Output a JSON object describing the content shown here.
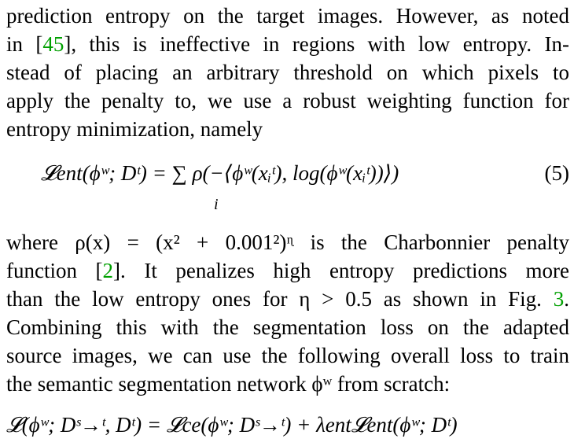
{
  "paragraph1": {
    "line1": "prediction entropy on the target images. However, as noted",
    "line2_pre": "in [",
    "line2_cite": "45",
    "line2_post": "], this is ineffective in regions with low entropy. In-",
    "line3": "stead of placing an arbitrary threshold on which pixels to",
    "line4": "apply the penalty to, we use a robust weighting function for",
    "line5": "entropy minimization, namely"
  },
  "equation5": {
    "body": "𝓛ent(ϕʷ; Dᵗ) = ∑ ρ(−⟨ϕʷ(xᵢᵗ), log(ϕʷ(xᵢᵗ))⟩)",
    "sum_index": "i",
    "number": "(5)"
  },
  "paragraph2": {
    "line1": "where ρ(x) = (x² + 0.001²)ᶯ is the Charbonnier penalty",
    "line2_pre": "function [",
    "line2_cite": "2",
    "line2_post": "].  It penalizes high entropy predictions more",
    "line3_pre": "than the low entropy ones for η > 0.5 as shown in Fig. ",
    "line3_cite": "3",
    "line3_post": ".",
    "line4": "Combining this with the segmentation loss on the adapted",
    "line5": "source images, we can use the following overall loss to train",
    "line6": "the semantic segmentation network ϕʷ from scratch:"
  },
  "final_equation": "𝓛(ϕʷ; Dˢ→ᵗ, Dᵗ) = 𝓛ce(ϕʷ; Dˢ→ᵗ) + λent𝓛ent(ϕʷ; Dᵗ)"
}
